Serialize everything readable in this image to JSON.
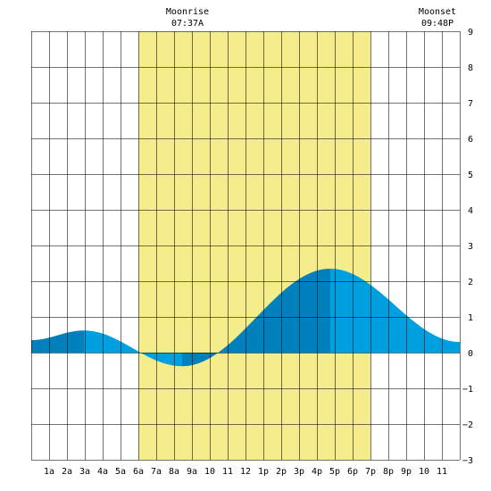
{
  "chart_data": {
    "type": "area",
    "title": "",
    "xlabel": "",
    "ylabel": "",
    "x_unit": "hour of day",
    "xlim": [
      0,
      24
    ],
    "ylim": [
      -3,
      9
    ],
    "y_ticks": [
      -3,
      -2,
      -1,
      0,
      1,
      2,
      3,
      4,
      5,
      6,
      7,
      8,
      9
    ],
    "x_tick_labels": [
      "1a",
      "2a",
      "3a",
      "4a",
      "5a",
      "6a",
      "7a",
      "8a",
      "9a",
      "10",
      "11",
      "12",
      "1p",
      "2p",
      "3p",
      "4p",
      "5p",
      "6p",
      "7p",
      "8p",
      "9p",
      "10",
      "11"
    ],
    "grid": true,
    "daylight": {
      "start": 6.0,
      "end": 19.0,
      "color": "#f5ec8c"
    },
    "moon": {
      "rise_label": "Moonrise",
      "rise_time": "07:37A",
      "rise_hour": 7.62,
      "set_label": "Moonset",
      "set_time": "09:48P",
      "set_hour": 21.8
    },
    "tide_extremes": [
      {
        "x": 0.0,
        "y": 0.35
      },
      {
        "x": 2.95,
        "y": 0.62
      },
      {
        "x": 8.45,
        "y": -0.38
      },
      {
        "x": 16.75,
        "y": 2.35
      },
      {
        "x": 24.0,
        "y": 0.3
      }
    ],
    "phase_boundaries": [
      2.95,
      8.45,
      16.75
    ],
    "colors": {
      "tide_light": "#00a0e0",
      "tide_dark": "#0080bc",
      "grid": "#000000",
      "daylight": "#f5ec8c"
    }
  }
}
